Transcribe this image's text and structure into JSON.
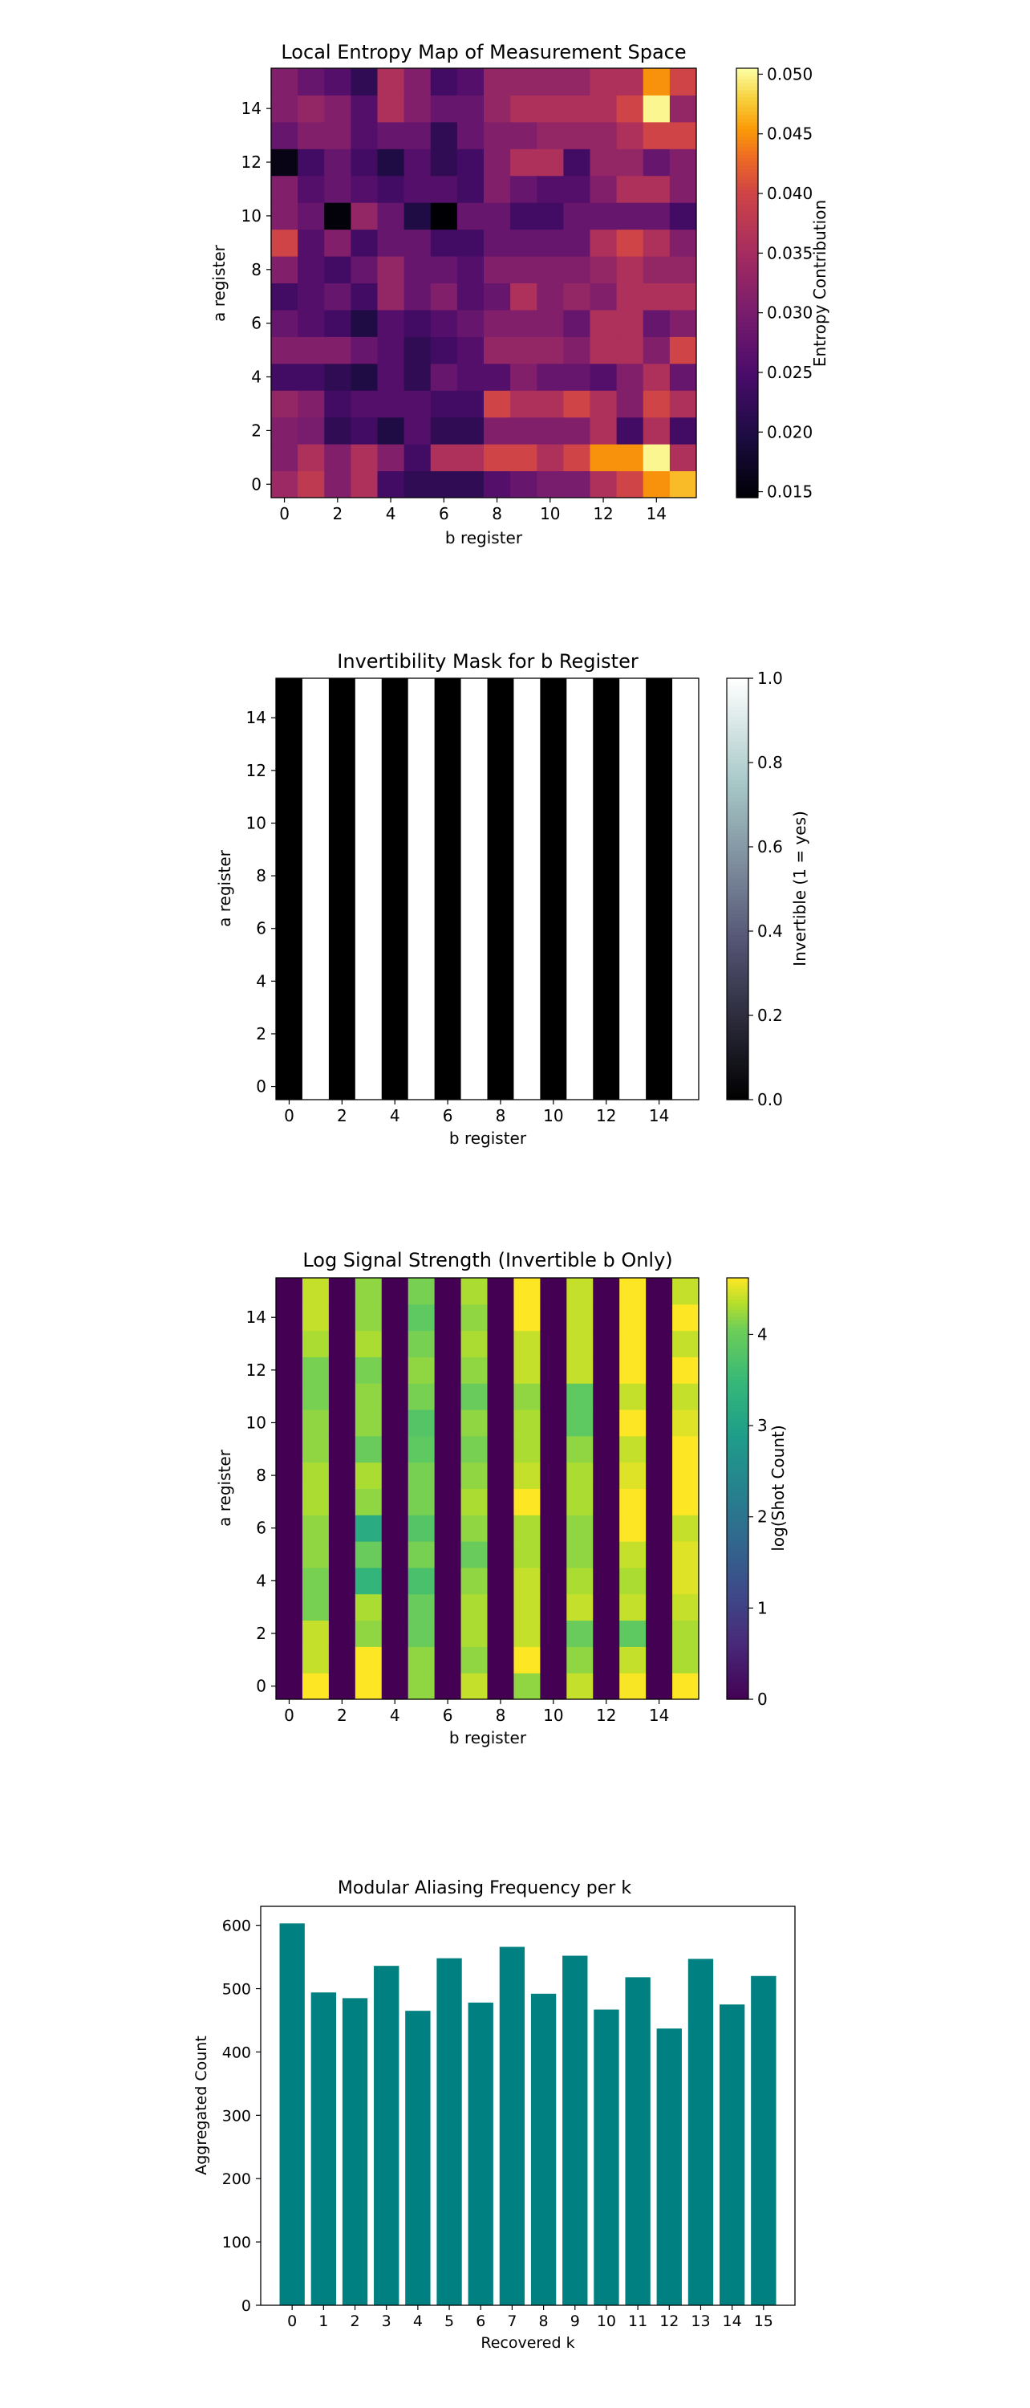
{
  "chart_data": [
    {
      "type": "heatmap",
      "title": "Local Entropy Map of Measurement Space",
      "xlabel": "b register",
      "ylabel": "a register",
      "colorbar_label": "Entropy Contribution",
      "colormap": "inferno",
      "vmin": 0.0145,
      "vmax": 0.0505,
      "colorbar_ticks": [
        0.015,
        0.02,
        0.025,
        0.03,
        0.035,
        0.04,
        0.045,
        0.05
      ],
      "colorbar_tick_labels": [
        "0.015",
        "0.020",
        "0.025",
        "0.030",
        "0.035",
        "0.040",
        "0.045",
        "0.050"
      ],
      "x_ticks": [
        "0",
        "2",
        "4",
        "6",
        "8",
        "10",
        "12",
        "14"
      ],
      "y_ticks": [
        "0",
        "2",
        "4",
        "6",
        "8",
        "10",
        "12",
        "14"
      ],
      "rows_a0_to_a15": [
        [
          0.034,
          0.038,
          0.031,
          0.036,
          0.024,
          0.022,
          0.022,
          0.022,
          0.026,
          0.028,
          0.03,
          0.03,
          0.036,
          0.04,
          0.045,
          0.047
        ],
        [
          0.031,
          0.036,
          0.031,
          0.036,
          0.031,
          0.024,
          0.036,
          0.036,
          0.04,
          0.04,
          0.036,
          0.04,
          0.045,
          0.045,
          0.05,
          0.036
        ],
        [
          0.031,
          0.03,
          0.022,
          0.024,
          0.02,
          0.026,
          0.022,
          0.022,
          0.031,
          0.031,
          0.031,
          0.031,
          0.036,
          0.024,
          0.036,
          0.024
        ],
        [
          0.033,
          0.031,
          0.024,
          0.026,
          0.026,
          0.026,
          0.024,
          0.024,
          0.04,
          0.036,
          0.036,
          0.04,
          0.036,
          0.031,
          0.04,
          0.036
        ],
        [
          0.024,
          0.024,
          0.022,
          0.02,
          0.026,
          0.022,
          0.028,
          0.026,
          0.026,
          0.031,
          0.028,
          0.028,
          0.026,
          0.031,
          0.036,
          0.028
        ],
        [
          0.031,
          0.031,
          0.031,
          0.028,
          0.026,
          0.022,
          0.024,
          0.026,
          0.033,
          0.033,
          0.033,
          0.031,
          0.036,
          0.036,
          0.031,
          0.04
        ],
        [
          0.028,
          0.026,
          0.024,
          0.02,
          0.026,
          0.024,
          0.026,
          0.028,
          0.031,
          0.031,
          0.031,
          0.028,
          0.036,
          0.036,
          0.028,
          0.031
        ],
        [
          0.024,
          0.026,
          0.028,
          0.024,
          0.033,
          0.028,
          0.031,
          0.026,
          0.028,
          0.036,
          0.031,
          0.033,
          0.031,
          0.036,
          0.036,
          0.036
        ],
        [
          0.031,
          0.026,
          0.024,
          0.028,
          0.033,
          0.028,
          0.028,
          0.026,
          0.031,
          0.031,
          0.031,
          0.031,
          0.033,
          0.036,
          0.033,
          0.033
        ],
        [
          0.04,
          0.026,
          0.031,
          0.024,
          0.028,
          0.028,
          0.024,
          0.024,
          0.028,
          0.028,
          0.028,
          0.028,
          0.036,
          0.04,
          0.036,
          0.031
        ],
        [
          0.031,
          0.028,
          0.015,
          0.033,
          0.028,
          0.02,
          0.014,
          0.028,
          0.028,
          0.024,
          0.024,
          0.028,
          0.028,
          0.028,
          0.028,
          0.024
        ],
        [
          0.031,
          0.026,
          0.028,
          0.026,
          0.024,
          0.026,
          0.026,
          0.024,
          0.031,
          0.028,
          0.026,
          0.026,
          0.031,
          0.036,
          0.036,
          0.031
        ],
        [
          0.016,
          0.024,
          0.028,
          0.024,
          0.02,
          0.026,
          0.022,
          0.024,
          0.031,
          0.036,
          0.036,
          0.024,
          0.033,
          0.033,
          0.028,
          0.031
        ],
        [
          0.028,
          0.031,
          0.031,
          0.026,
          0.028,
          0.028,
          0.022,
          0.028,
          0.031,
          0.031,
          0.033,
          0.033,
          0.033,
          0.036,
          0.04,
          0.04
        ],
        [
          0.031,
          0.033,
          0.031,
          0.026,
          0.036,
          0.031,
          0.028,
          0.028,
          0.033,
          0.036,
          0.036,
          0.036,
          0.036,
          0.04,
          0.05,
          0.033
        ],
        [
          0.031,
          0.028,
          0.026,
          0.022,
          0.036,
          0.031,
          0.024,
          0.026,
          0.033,
          0.033,
          0.033,
          0.033,
          0.036,
          0.036,
          0.045,
          0.04
        ]
      ]
    },
    {
      "type": "heatmap",
      "title": "Invertibility Mask for b Register",
      "xlabel": "b register",
      "ylabel": "a register",
      "colorbar_label": "Invertible (1 = yes)",
      "colormap": "bone",
      "vmin": 0.0,
      "vmax": 1.0,
      "colorbar_ticks": [
        0.0,
        0.2,
        0.4,
        0.6,
        0.8,
        1.0
      ],
      "colorbar_tick_labels": [
        "0.0",
        "0.2",
        "0.4",
        "0.6",
        "0.8",
        "1.0"
      ],
      "x_ticks": [
        "0",
        "2",
        "4",
        "6",
        "8",
        "10",
        "12",
        "14"
      ],
      "y_ticks": [
        "0",
        "2",
        "4",
        "6",
        "8",
        "10",
        "12",
        "14"
      ],
      "column_values_b0_to_b15": [
        0,
        1,
        0,
        1,
        0,
        1,
        0,
        1,
        0,
        1,
        0,
        1,
        0,
        1,
        0,
        1
      ]
    },
    {
      "type": "heatmap",
      "title": "Log Signal Strength (Invertible b Only)",
      "xlabel": "b register",
      "ylabel": "a register",
      "colorbar_label": "log(Shot Count)",
      "colormap": "viridis",
      "vmin": 0.0,
      "vmax": 4.62,
      "colorbar_ticks": [
        0,
        1,
        2,
        3,
        4
      ],
      "colorbar_tick_labels": [
        "0",
        "1",
        "2",
        "3",
        "4"
      ],
      "x_ticks": [
        "0",
        "2",
        "4",
        "6",
        "8",
        "10",
        "12",
        "14"
      ],
      "y_ticks": [
        "0",
        "2",
        "4",
        "6",
        "8",
        "10",
        "12",
        "14"
      ],
      "odd_columns_b": [
        1,
        3,
        5,
        7,
        9,
        11,
        13,
        15
      ],
      "odd_column_values_a0_to_a15": [
        [
          4.62,
          4.4,
          4.4,
          4.1,
          4.1,
          4.2,
          4.2,
          4.3,
          4.3,
          4.2,
          4.2,
          4.1,
          4.1,
          4.3,
          4.4,
          4.4
        ],
        [
          4.62,
          4.62,
          4.2,
          4.3,
          3.4,
          4.0,
          3.2,
          4.2,
          4.3,
          4.0,
          4.2,
          4.2,
          4.1,
          4.3,
          4.2,
          4.2
        ],
        [
          4.2,
          4.2,
          4.0,
          4.0,
          3.7,
          4.1,
          3.8,
          4.1,
          4.1,
          3.9,
          3.8,
          4.1,
          4.2,
          4.1,
          3.9,
          4.1
        ],
        [
          4.4,
          4.2,
          4.3,
          4.3,
          4.2,
          4.0,
          4.2,
          4.3,
          4.2,
          4.1,
          4.2,
          4.0,
          4.2,
          4.3,
          4.2,
          4.3
        ],
        [
          4.2,
          4.62,
          4.4,
          4.4,
          4.4,
          4.3,
          4.3,
          4.62,
          4.4,
          4.3,
          4.3,
          4.2,
          4.4,
          4.4,
          4.62,
          4.62
        ],
        [
          4.4,
          4.2,
          4.0,
          4.4,
          4.3,
          4.2,
          4.2,
          4.3,
          4.3,
          4.2,
          3.9,
          3.9,
          4.4,
          4.4,
          4.4,
          4.4
        ],
        [
          4.6,
          4.4,
          3.9,
          4.4,
          4.3,
          4.4,
          4.62,
          4.62,
          4.5,
          4.4,
          4.62,
          4.4,
          4.62,
          4.62,
          4.62,
          4.62
        ],
        [
          4.62,
          4.3,
          4.3,
          4.4,
          4.5,
          4.5,
          4.4,
          4.62,
          4.62,
          4.62,
          4.5,
          4.4,
          4.62,
          4.4,
          4.62,
          4.4
        ]
      ]
    },
    {
      "type": "bar",
      "title": "Modular Aliasing Frequency per k",
      "xlabel": "Recovered k",
      "ylabel": "Aggregated Count",
      "color": "#008080",
      "categories": [
        "0",
        "1",
        "2",
        "3",
        "4",
        "5",
        "6",
        "7",
        "8",
        "9",
        "10",
        "11",
        "12",
        "13",
        "14",
        "15"
      ],
      "values": [
        603,
        494,
        485,
        536,
        465,
        548,
        478,
        566,
        492,
        552,
        467,
        518,
        437,
        547,
        475,
        520
      ],
      "ylim": [
        0,
        630
      ],
      "y_ticks": [
        0,
        100,
        200,
        300,
        400,
        500,
        600
      ],
      "y_tick_labels": [
        "0",
        "100",
        "200",
        "300",
        "400",
        "500",
        "600"
      ]
    }
  ]
}
